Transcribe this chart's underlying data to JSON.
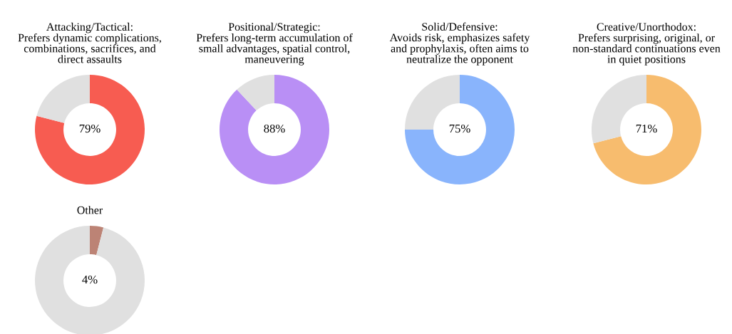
{
  "chart_data": [
    {
      "type": "donut",
      "title": "Attacking/Tactical:\nPrefers dynamic complications,\ncombinations, sacrifices, and\ndirect assaults",
      "categories": [
        null,
        null
      ],
      "values": [
        79,
        21
      ],
      "colors": [
        "#f75c51",
        "#e0e0e0"
      ],
      "annotations": [
        "79%"
      ]
    },
    {
      "type": "donut",
      "title": "Positional/Strategic:\nPrefers long-term accumulation of\nsmall advantages, spatial control,\nmaneuvering",
      "categories": [
        null,
        null
      ],
      "values": [
        88,
        12
      ],
      "colors": [
        "#b98ff5",
        "#e0e0e0"
      ],
      "annotations": [
        "88%"
      ]
    },
    {
      "type": "donut",
      "title": "Solid/Defensive:\nAvoids risk, emphasizes safety\nand prophylaxis, often aims to\nneutralize the opponent",
      "categories": [
        null,
        null
      ],
      "values": [
        75,
        25
      ],
      "colors": [
        "#89b4fc",
        "#e0e0e0"
      ],
      "annotations": [
        "75%"
      ]
    },
    {
      "type": "donut",
      "title": "Creative/Unorthodox:\nPrefers surprising, original, or\nnon-standard continuations even\nin quiet positions",
      "categories": [
        null,
        null
      ],
      "values": [
        71,
        29
      ],
      "colors": [
        "#f7bc6e",
        "#e0e0e0"
      ],
      "annotations": [
        "71%"
      ]
    },
    {
      "type": "donut",
      "title": "Other",
      "categories": [
        null,
        null
      ],
      "values": [
        4,
        96
      ],
      "colors": [
        "#bc8375",
        "#e0e0e0"
      ],
      "annotations": [
        "4%"
      ]
    }
  ]
}
